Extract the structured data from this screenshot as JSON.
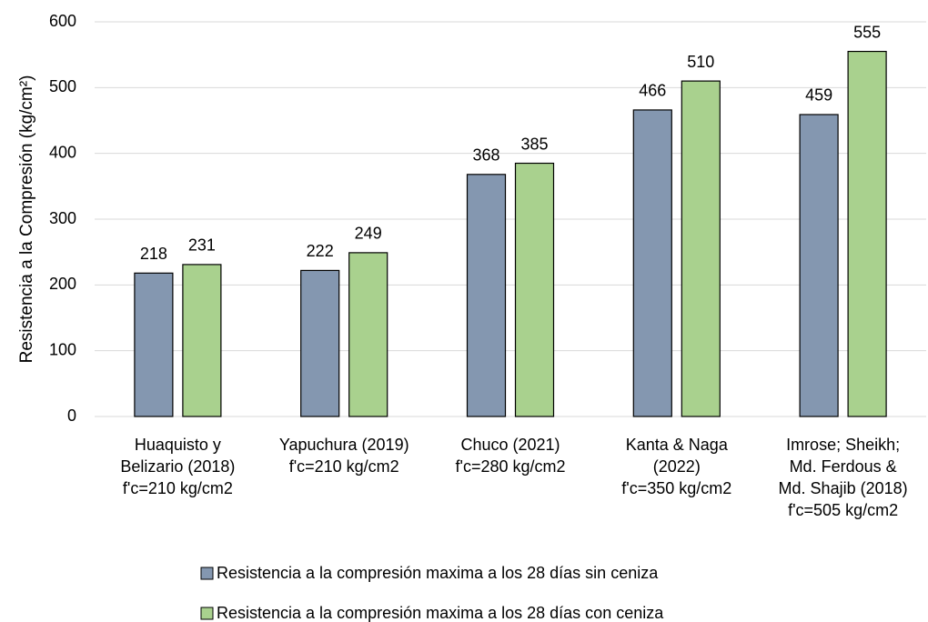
{
  "chart_data": {
    "type": "bar",
    "y_label": "Resistencia a la Compresión (kg/cm²)",
    "categories": [
      [
        "Huaquisto y",
        "Belizario (2018)",
        "f'c=210 kg/cm2"
      ],
      [
        "Yapuchura (2019)",
        "f'c=210 kg/cm2"
      ],
      [
        "Chuco (2021)",
        "f'c=280 kg/cm2"
      ],
      [
        "Kanta & Naga",
        "(2022)",
        "f'c=350 kg/cm2"
      ],
      [
        "Imrose; Sheikh;",
        "Md. Ferdous &",
        "Md. Shajib (2018)",
        "f'c=505 kg/cm2"
      ]
    ],
    "series": [
      {
        "name": "Resistencia a la compresión maxima a los 28 días sin ceniza",
        "color": "#8497b0",
        "values": [
          218,
          222,
          368,
          466,
          459
        ]
      },
      {
        "name": "Resistencia a la compresión maxima a los 28 días con ceniza",
        "color": "#a9d18e",
        "values": [
          231,
          249,
          385,
          510,
          555
        ]
      }
    ],
    "ylim": [
      0,
      600
    ],
    "yticks": [
      0,
      100,
      200,
      300,
      400,
      500,
      600
    ],
    "grid": true,
    "legend": "bottom"
  }
}
